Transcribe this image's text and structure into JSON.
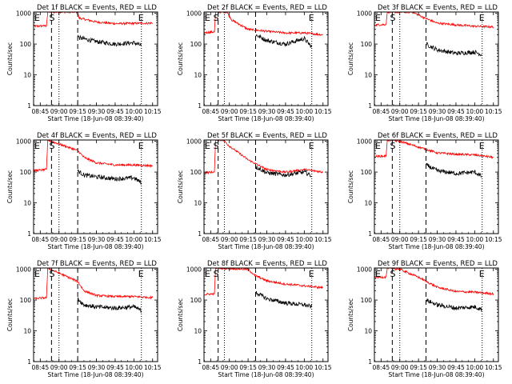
{
  "figure": {
    "ylabel": "Counts/sec",
    "xlabel": "Start Time (18-Jun-08 08:39:40)",
    "xtick_labels": [
      "08:45",
      "09:00",
      "09:15",
      "09:30",
      "09:45",
      "10:00",
      "10:15"
    ],
    "ytick_labels": [
      "1",
      "10",
      "100",
      "1000"
    ],
    "marker_s": "S",
    "marker_e": "E",
    "colors": {
      "events": "#000000",
      "lld": "#ff0000",
      "axis": "#000000"
    }
  },
  "chart_data": [
    {
      "type": "line",
      "title": "Det 1f BLACK = Events, RED = LLD",
      "yscale": "log",
      "ylim": [
        1,
        1100
      ],
      "xlim": [
        "08:39:40",
        "10:19:00"
      ],
      "markers": {
        "s": "08:56",
        "dashed": [
          "08:54",
          "09:15"
        ],
        "dotted": [
          "09:00",
          "10:06"
        ],
        "e": "10:06"
      },
      "series": [
        {
          "name": "LLD",
          "color": "#ff0000",
          "points": [
            [
              "08:39",
              "380"
            ],
            [
              "08:50",
              "390"
            ],
            [
              "08:51",
              "1100"
            ],
            [
              "09:15",
              "1100"
            ],
            [
              "09:16",
              "700"
            ],
            [
              "09:30",
              "520"
            ],
            [
              "09:45",
              "460"
            ],
            [
              "10:00",
              "470"
            ],
            [
              "10:15",
              "480"
            ]
          ]
        },
        {
          "name": "Events",
          "color": "#000000",
          "points": [
            [
              "09:15",
              "200"
            ],
            [
              "09:16",
              "160"
            ],
            [
              "09:30",
              "120"
            ],
            [
              "09:45",
              "100"
            ],
            [
              "10:00",
              "110"
            ],
            [
              "10:06",
              "90"
            ]
          ]
        }
      ]
    },
    {
      "type": "line",
      "title": "Det 2f BLACK = Events, RED = LLD",
      "yscale": "log",
      "ylim": [
        1,
        1100
      ],
      "xlim": [
        "08:39:40",
        "10:19:00"
      ],
      "markers": {
        "s": "08:51",
        "dashed": [
          "08:51",
          "09:21"
        ],
        "dotted": [
          "08:56",
          "10:06"
        ],
        "e": "10:06"
      },
      "series": [
        {
          "name": "LLD",
          "color": "#ff0000",
          "points": [
            [
              "08:39",
              "230"
            ],
            [
              "08:48",
              "250"
            ],
            [
              "08:49",
              "1100"
            ],
            [
              "08:58",
              "1100"
            ],
            [
              "09:02",
              "600"
            ],
            [
              "09:15",
              "300"
            ],
            [
              "09:30",
              "260"
            ],
            [
              "09:45",
              "230"
            ],
            [
              "10:00",
              "230"
            ],
            [
              "10:15",
              "200"
            ]
          ]
        },
        {
          "name": "Events",
          "color": "#000000",
          "points": [
            [
              "09:21",
              "200"
            ],
            [
              "09:30",
              "130"
            ],
            [
              "09:45",
              "100"
            ],
            [
              "10:00",
              "150"
            ],
            [
              "10:06",
              "80"
            ]
          ]
        }
      ]
    },
    {
      "type": "line",
      "title": "Det 3f BLACK = Events, RED = LLD",
      "yscale": "log",
      "ylim": [
        1,
        1100
      ],
      "xlim": [
        "08:39:40",
        "10:19:00"
      ],
      "markers": {
        "s": "08:56",
        "dashed": [
          "08:54",
          "09:21"
        ],
        "dotted": [
          "09:00",
          "10:06"
        ],
        "e": "10:06"
      },
      "series": [
        {
          "name": "LLD",
          "color": "#ff0000",
          "points": [
            [
              "08:39",
              "420"
            ],
            [
              "08:49",
              "430"
            ],
            [
              "08:50",
              "1100"
            ],
            [
              "09:10",
              "1100"
            ],
            [
              "09:20",
              "700"
            ],
            [
              "09:30",
              "480"
            ],
            [
              "09:45",
              "420"
            ],
            [
              "10:00",
              "380"
            ],
            [
              "10:15",
              "360"
            ]
          ]
        },
        {
          "name": "Events",
          "color": "#000000",
          "points": [
            [
              "09:21",
              "100"
            ],
            [
              "09:30",
              "65"
            ],
            [
              "09:45",
              "50"
            ],
            [
              "10:00",
              "55"
            ],
            [
              "10:06",
              "45"
            ]
          ]
        }
      ]
    },
    {
      "type": "line",
      "title": "Det 4f BLACK = Events, RED = LLD",
      "yscale": "log",
      "ylim": [
        1,
        1100
      ],
      "xlim": [
        "08:39:40",
        "10:19:00"
      ],
      "markers": {
        "s": "08:56",
        "dashed": [
          "08:54",
          "09:15"
        ],
        "dotted": [
          "09:00",
          "10:06"
        ],
        "e": "10:06"
      },
      "series": [
        {
          "name": "LLD",
          "color": "#ff0000",
          "points": [
            [
              "08:39",
              "110"
            ],
            [
              "08:50",
              "120"
            ],
            [
              "08:51",
              "1100"
            ],
            [
              "09:15",
              "500"
            ],
            [
              "09:20",
              "300"
            ],
            [
              "09:30",
              "200"
            ],
            [
              "09:45",
              "170"
            ],
            [
              "10:00",
              "170"
            ],
            [
              "10:15",
              "160"
            ]
          ]
        },
        {
          "name": "Events",
          "color": "#000000",
          "points": [
            [
              "09:15",
              "110"
            ],
            [
              "09:20",
              "80"
            ],
            [
              "09:30",
              "70"
            ],
            [
              "09:45",
              "60"
            ],
            [
              "10:00",
              "65"
            ],
            [
              "10:06",
              "45"
            ]
          ]
        }
      ]
    },
    {
      "type": "line",
      "title": "Det 5f BLACK = Events, RED = LLD",
      "yscale": "log",
      "ylim": [
        1,
        1100
      ],
      "xlim": [
        "08:39:40",
        "10:19:00"
      ],
      "markers": {
        "s": "08:51",
        "dashed": [
          "08:51",
          "09:21"
        ],
        "dotted": [
          "08:56",
          "10:06"
        ],
        "e": "10:06"
      },
      "series": [
        {
          "name": "LLD",
          "color": "#ff0000",
          "points": [
            [
              "08:39",
              "95"
            ],
            [
              "08:48",
              "100"
            ],
            [
              "08:49",
              "1100"
            ],
            [
              "08:55",
              "1100"
            ],
            [
              "09:00",
              "700"
            ],
            [
              "09:15",
              "250"
            ],
            [
              "09:30",
              "120"
            ],
            [
              "09:45",
              "100"
            ],
            [
              "10:00",
              "120"
            ],
            [
              "10:15",
              "100"
            ]
          ]
        },
        {
          "name": "Events",
          "color": "#000000",
          "points": [
            [
              "09:21",
              "150"
            ],
            [
              "09:30",
              "95"
            ],
            [
              "09:45",
              "80"
            ],
            [
              "10:00",
              "100"
            ],
            [
              "10:06",
              "75"
            ]
          ]
        }
      ]
    },
    {
      "type": "line",
      "title": "Det 6f BLACK = Events, RED = LLD",
      "yscale": "log",
      "ylim": [
        1,
        1100
      ],
      "xlim": [
        "08:39:40",
        "10:19:00"
      ],
      "markers": {
        "s": "08:56",
        "dashed": [
          "08:54",
          "09:21"
        ],
        "dotted": [
          "09:00",
          "10:06"
        ],
        "e": "10:06"
      },
      "series": [
        {
          "name": "LLD",
          "color": "#ff0000",
          "points": [
            [
              "08:39",
              "320"
            ],
            [
              "08:49",
              "330"
            ],
            [
              "08:50",
              "1100"
            ],
            [
              "09:00",
              "1000"
            ],
            [
              "09:15",
              "650"
            ],
            [
              "09:30",
              "420"
            ],
            [
              "09:45",
              "380"
            ],
            [
              "10:00",
              "360"
            ],
            [
              "10:15",
              "300"
            ]
          ]
        },
        {
          "name": "Events",
          "color": "#000000",
          "points": [
            [
              "09:21",
              "170"
            ],
            [
              "09:30",
              "110"
            ],
            [
              "09:45",
              "90"
            ],
            [
              "10:00",
              "100"
            ],
            [
              "10:06",
              "70"
            ]
          ]
        }
      ]
    },
    {
      "type": "line",
      "title": "Det 7f BLACK = Events, RED = LLD",
      "yscale": "log",
      "ylim": [
        1,
        1100
      ],
      "xlim": [
        "08:39:40",
        "10:19:00"
      ],
      "markers": {
        "s": "08:56",
        "dashed": [
          "08:54",
          "09:15"
        ],
        "dotted": [
          "09:00",
          "10:06"
        ],
        "e": "10:06"
      },
      "series": [
        {
          "name": "LLD",
          "color": "#ff0000",
          "points": [
            [
              "08:39",
              "110"
            ],
            [
              "08:50",
              "120"
            ],
            [
              "08:51",
              "1100"
            ],
            [
              "09:15",
              "400"
            ],
            [
              "09:20",
              "200"
            ],
            [
              "09:30",
              "140"
            ],
            [
              "09:45",
              "130"
            ],
            [
              "10:00",
              "130"
            ],
            [
              "10:15",
              "120"
            ]
          ]
        },
        {
          "name": "Events",
          "color": "#000000",
          "points": [
            [
              "09:15",
              "110"
            ],
            [
              "09:20",
              "70"
            ],
            [
              "09:30",
              "60"
            ],
            [
              "09:45",
              "55"
            ],
            [
              "10:00",
              "60"
            ],
            [
              "10:06",
              "45"
            ]
          ]
        }
      ]
    },
    {
      "type": "line",
      "title": "Det 8f BLACK = Events, RED = LLD",
      "yscale": "log",
      "ylim": [
        1,
        1100
      ],
      "xlim": [
        "08:39:40",
        "10:19:00"
      ],
      "markers": {
        "s": "08:51",
        "dashed": [
          "08:51",
          "09:21"
        ],
        "dotted": [
          "08:56",
          "10:06"
        ],
        "e": "10:06"
      },
      "series": [
        {
          "name": "LLD",
          "color": "#ff0000",
          "points": [
            [
              "08:39",
              "150"
            ],
            [
              "08:48",
              "160"
            ],
            [
              "08:49",
              "1100"
            ],
            [
              "09:15",
              "1000"
            ],
            [
              "09:20",
              "650"
            ],
            [
              "09:30",
              "420"
            ],
            [
              "09:45",
              "330"
            ],
            [
              "10:00",
              "290"
            ],
            [
              "10:15",
              "250"
            ]
          ]
        },
        {
          "name": "Events",
          "color": "#000000",
          "points": [
            [
              "09:21",
              "180"
            ],
            [
              "09:30",
              "110"
            ],
            [
              "09:45",
              "80"
            ],
            [
              "10:00",
              "70"
            ],
            [
              "10:06",
              "60"
            ]
          ]
        }
      ]
    },
    {
      "type": "line",
      "title": "Det 9f BLACK = Events, RED = LLD",
      "yscale": "log",
      "ylim": [
        1,
        1100
      ],
      "xlim": [
        "08:39:40",
        "10:19:00"
      ],
      "markers": {
        "s": "08:56",
        "dashed": [
          "08:54",
          "09:21"
        ],
        "dotted": [
          "09:00",
          "10:06"
        ],
        "e": "10:06"
      },
      "series": [
        {
          "name": "LLD",
          "color": "#ff0000",
          "points": [
            [
              "08:39",
              "550"
            ],
            [
              "08:49",
              "560"
            ],
            [
              "08:50",
              "1100"
            ],
            [
              "09:00",
              "1000"
            ],
            [
              "09:15",
              "550"
            ],
            [
              "09:30",
              "260"
            ],
            [
              "09:45",
              "190"
            ],
            [
              "10:00",
              "180"
            ],
            [
              "10:15",
              "160"
            ]
          ]
        },
        {
          "name": "Events",
          "color": "#000000",
          "points": [
            [
              "09:21",
              "100"
            ],
            [
              "09:30",
              "70"
            ],
            [
              "09:45",
              "55"
            ],
            [
              "10:00",
              "60"
            ],
            [
              "10:06",
              "50"
            ]
          ]
        }
      ]
    }
  ]
}
